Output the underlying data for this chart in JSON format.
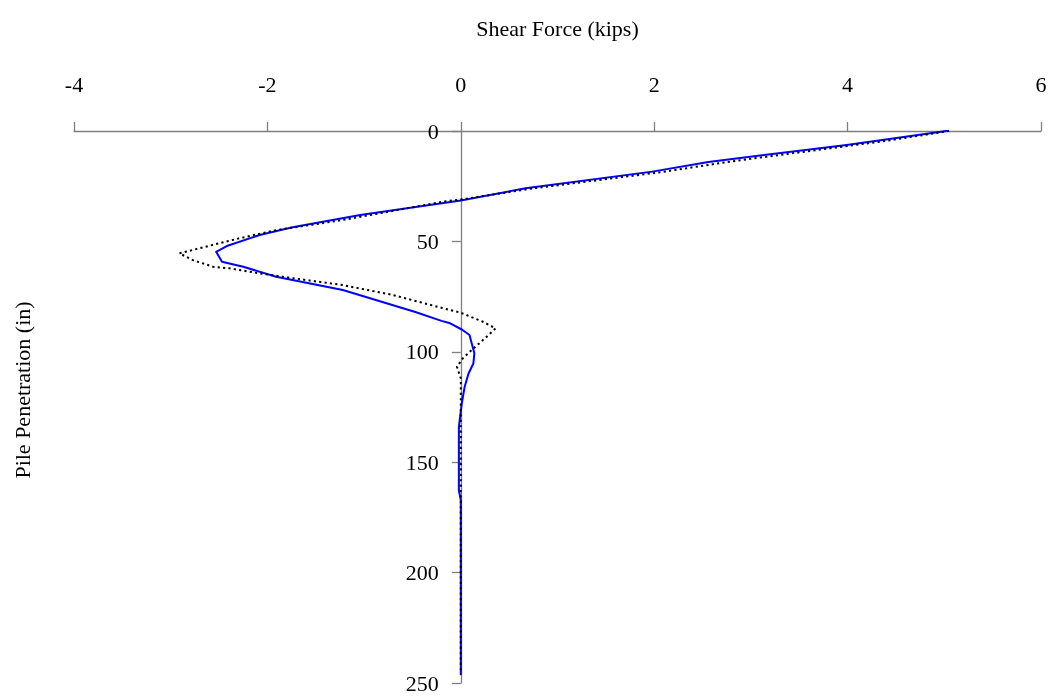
{
  "chart_data": {
    "type": "line",
    "xlabel": "Shear Force (kips)",
    "ylabel": "Pile Penetration (in)",
    "xlim": [
      -4,
      6
    ],
    "xticks": [
      -4,
      -2,
      0,
      2,
      4,
      6
    ],
    "ylim": [
      250,
      0
    ],
    "yticks": [
      0,
      50,
      100,
      150,
      200,
      250
    ],
    "grid": false,
    "marker": "none",
    "series": [
      {
        "color": "#000000",
        "line_style": "dotted",
        "x": [
          5.05,
          4.41,
          2.81,
          2.06,
          0.71,
          0.07,
          -0.18,
          -1.22,
          -1.91,
          -2.29,
          -2.53,
          -2.91,
          -2.77,
          -2.56,
          -2.39,
          -2.08,
          -1.73,
          -1.22,
          -0.7,
          -0.11,
          0,
          0.23,
          0.36,
          0.25,
          0.13,
          0.02,
          -0.04,
          0,
          0
        ],
        "values": [
          0,
          4.4,
          13.7,
          18.7,
          26.2,
          30.6,
          32,
          40.3,
          44.9,
          48.6,
          51.2,
          55.4,
          58.5,
          61.5,
          62.2,
          64.5,
          66.7,
          69.8,
          74.3,
          81.1,
          82.3,
          86.4,
          89.4,
          93.9,
          98.5,
          103,
          106.8,
          112,
          246
        ]
      },
      {
        "color": "#0000ff",
        "line_style": "solid",
        "x": [
          5.02,
          3.99,
          2.56,
          1.98,
          0.67,
          0,
          -1.04,
          -1.74,
          -2.08,
          -2.42,
          -2.53,
          -2.47,
          -2.25,
          -1.91,
          -1.22,
          -0.47,
          -0.2,
          -0.11,
          0.01,
          0.09,
          0.14,
          0.13,
          0.08,
          0.04,
          0.01,
          -0.02,
          -0.02,
          0,
          0
        ],
        "values": [
          0,
          6.3,
          14,
          18.4,
          25.9,
          31.5,
          38,
          43.6,
          47.1,
          52.1,
          54.7,
          59.2,
          61.5,
          66,
          72,
          82,
          86,
          87.1,
          89.9,
          92.4,
          100.7,
          105.3,
          109.8,
          115.8,
          123.4,
          134,
          162.7,
          167.2,
          246
        ]
      }
    ]
  }
}
